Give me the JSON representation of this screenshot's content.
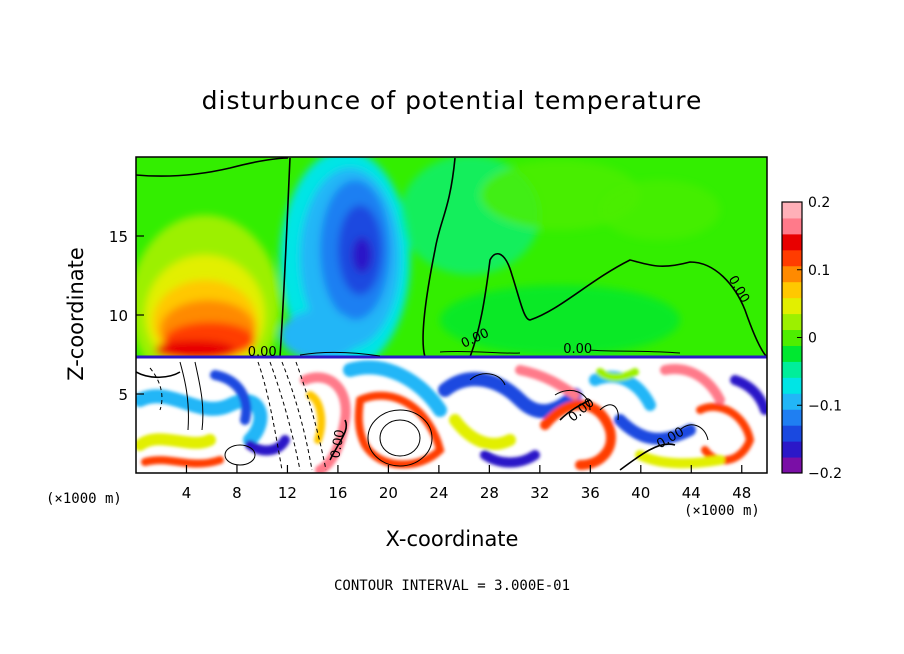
{
  "chart_data": {
    "type": "heatmap",
    "title": "disturbunce of potential temperature",
    "xlabel": "X-coordinate",
    "ylabel": "Z-coordinate",
    "x_unit_left": "(×1000 m)",
    "x_unit_right": "(×1000 m)",
    "x_ticks": [
      "4",
      "8",
      "12",
      "16",
      "20",
      "24",
      "28",
      "32",
      "36",
      "40",
      "44",
      "48"
    ],
    "y_ticks": [
      "5",
      "10",
      "15"
    ],
    "xlim": [
      0,
      50
    ],
    "ylim": [
      0,
      20
    ],
    "colorbar": {
      "range": [
        -0.2,
        0.2
      ],
      "tick_labels": [
        "0.2",
        "0.1",
        "0",
        "−0.1",
        "−0.2"
      ],
      "tick_values": [
        0.2,
        0.1,
        0,
        -0.1,
        -0.2
      ],
      "colors": [
        "#7a0fa6",
        "#2b18c8",
        "#1a49e0",
        "#1f7ff2",
        "#22b6f7",
        "#00e5e5",
        "#00ee9a",
        "#00e830",
        "#4eee00",
        "#9cf000",
        "#e2ef00",
        "#ffc800",
        "#ff8a00",
        "#ff3c00",
        "#e80000",
        "#ff7a8a",
        "#ffb0b8"
      ]
    },
    "contour_labels": [
      "0.00",
      "0.00",
      "0.00",
      "0.00",
      "0.00",
      "0.00",
      "0.00"
    ],
    "contour_interval_text": "CONTOUR INTERVAL = 3.000E-01",
    "grid": false
  }
}
